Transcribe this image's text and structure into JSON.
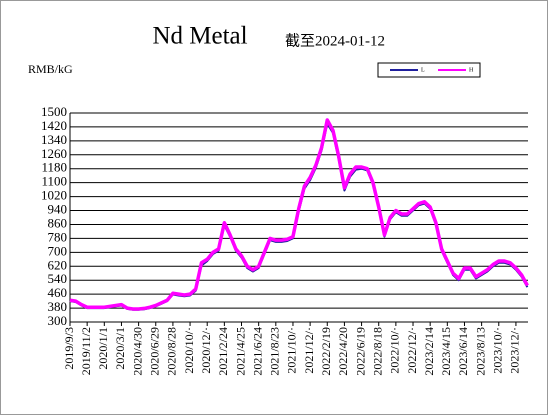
{
  "chart_data": {
    "type": "line",
    "title": "Nd Metal",
    "subtitle": "截至2024-01-12",
    "y_label": "RMB/kG",
    "categories": [
      "2019/9/3",
      null,
      null,
      "2019/11/2",
      null,
      null,
      "2020/1/1",
      null,
      null,
      "2020/3/1",
      null,
      null,
      "2020/4/30",
      null,
      null,
      "2020/6/29",
      null,
      null,
      "2020/8/28",
      null,
      null,
      "2020/10/·",
      null,
      null,
      "2020/12/·",
      null,
      null,
      "2021/2/24",
      null,
      null,
      "2021/4/25",
      null,
      null,
      "2021/6/24",
      null,
      null,
      "2021/8/23",
      null,
      null,
      "2021/10/·",
      null,
      null,
      "2021/12/·",
      null,
      null,
      "2022/2/19",
      null,
      null,
      "2022/4/20",
      null,
      null,
      "2022/6/19",
      null,
      null,
      "2022/8/18",
      null,
      null,
      "2022/10/·",
      null,
      null,
      "2022/12/·",
      null,
      null,
      "2023/2/14",
      null,
      null,
      "2023/4/15",
      null,
      null,
      "2023/6/14",
      null,
      null,
      "2023/8/13",
      null,
      null,
      "2023/10/·",
      null,
      null,
      "2023/12/·",
      null,
      null
    ],
    "series": [
      {
        "name": "L",
        "color": "#1f1f9e",
        "values": [
          420,
          415,
          395,
          380,
          380,
          380,
          380,
          385,
          390,
          395,
          375,
          370,
          370,
          373,
          380,
          390,
          405,
          420,
          458,
          452,
          448,
          452,
          480,
          625,
          650,
          690,
          710,
          855,
          790,
          710,
          670,
          610,
          590,
          610,
          690,
          770,
          760,
          760,
          765,
          780,
          935,
          1065,
          1115,
          1185,
          1285,
          1440,
          1385,
          1235,
          1055,
          1135,
          1175,
          1180,
          1170,
          1090,
          950,
          790,
          890,
          930,
          910,
          910,
          940,
          970,
          980,
          950,
          860,
          710,
          640,
          570,
          540,
          600,
          600,
          550,
          570,
          590,
          620,
          640,
          640,
          630,
          600,
          560,
          500
        ]
      },
      {
        "name": "H",
        "color": "#ff00ff",
        "values": [
          425,
          420,
          400,
          385,
          385,
          385,
          385,
          390,
          395,
          400,
          380,
          375,
          375,
          378,
          385,
          395,
          410,
          425,
          465,
          460,
          455,
          460,
          490,
          640,
          660,
          700,
          720,
          870,
          800,
          720,
          680,
          620,
          600,
          620,
          700,
          780,
          770,
          770,
          775,
          790,
          950,
          1080,
          1130,
          1200,
          1300,
          1460,
          1400,
          1250,
          1070,
          1150,
          1190,
          1190,
          1180,
          1100,
          960,
          800,
          900,
          940,
          920,
          920,
          950,
          980,
          990,
          960,
          870,
          720,
          650,
          580,
          550,
          610,
          610,
          560,
          580,
          600,
          630,
          650,
          650,
          640,
          610,
          570,
          510
        ]
      }
    ],
    "ylim": [
      300,
      1500
    ],
    "yticks": [
      300,
      380,
      460,
      540,
      620,
      700,
      780,
      860,
      940,
      1020,
      1100,
      1180,
      1260,
      1340,
      1420,
      1500
    ],
    "grid": true,
    "legend": "top-right"
  }
}
